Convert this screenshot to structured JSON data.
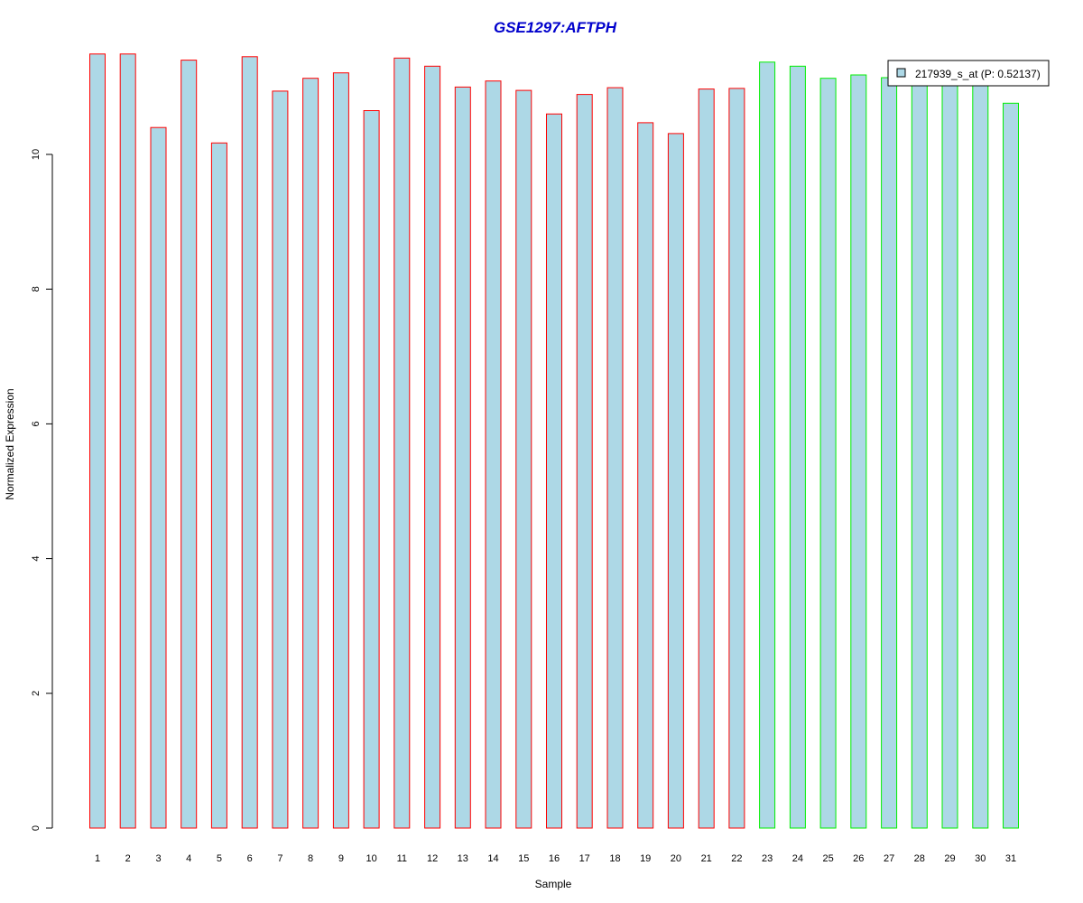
{
  "chart_data": {
    "type": "bar",
    "title": "GSE1297:AFTPH",
    "xlabel": "Sample",
    "ylabel": "Normalized Expression",
    "ylim": [
      0,
      11.5
    ],
    "yticks": [
      "0",
      "2",
      "4",
      "6",
      "8",
      "10"
    ],
    "grid": false,
    "legend_position": "top-right",
    "legend_label": "217939_s_at (P: 0.52137)",
    "colors": {
      "title": "#0000cc",
      "bar_fill": "#add8e6",
      "group1_border": "#ff0000",
      "group2_border": "#00ee00",
      "axis": "#000000"
    },
    "categories": [
      "1",
      "2",
      "3",
      "4",
      "5",
      "6",
      "7",
      "8",
      "9",
      "10",
      "11",
      "12",
      "13",
      "14",
      "15",
      "16",
      "17",
      "18",
      "19",
      "20",
      "21",
      "22",
      "23",
      "24",
      "25",
      "26",
      "27",
      "28",
      "29",
      "30",
      "31"
    ],
    "values": [
      11.49,
      11.49,
      10.4,
      11.4,
      10.17,
      11.45,
      10.94,
      11.13,
      11.21,
      10.65,
      11.43,
      11.31,
      11.0,
      11.09,
      10.95,
      10.6,
      10.89,
      10.99,
      10.47,
      10.31,
      10.97,
      10.98,
      11.37,
      11.31,
      11.13,
      11.18,
      11.14,
      11.07,
      11.07,
      11.06,
      10.76
    ],
    "groups": [
      1,
      1,
      1,
      1,
      1,
      1,
      1,
      1,
      1,
      1,
      1,
      1,
      1,
      1,
      1,
      1,
      1,
      1,
      1,
      1,
      1,
      1,
      2,
      2,
      2,
      2,
      2,
      2,
      2,
      2,
      2
    ]
  }
}
